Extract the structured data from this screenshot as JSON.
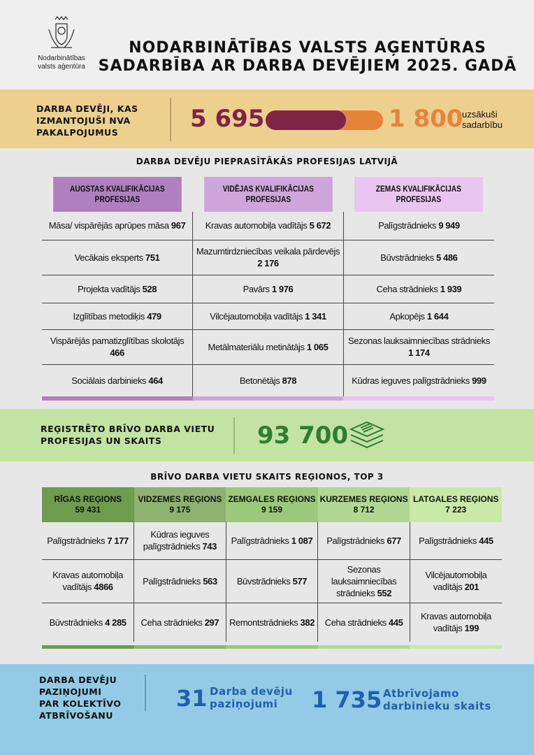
{
  "header": {
    "logo_text": [
      "Nodarbinātības",
      "valsts aģentūra"
    ],
    "title_line1": "NODARBINĀTĪBAS VALSTS AĢENTŪRAS",
    "title_line2": "SADARBĪBA AR DARBA DEVĒJIEM 2025. GADĀ"
  },
  "employers": {
    "label": [
      "DARBA DEVĒJI, KAS",
      "IZMANTOJUŠI NVA",
      "PAKALPOJUMUS"
    ],
    "total": "5 695",
    "started": "1 800",
    "started_label": [
      "uzsākuši",
      "sadarbību"
    ],
    "total_value": 5695,
    "started_value": 1800,
    "colors": {
      "total": "#7e2547",
      "started": "#e8833a"
    }
  },
  "professions": {
    "title": "DARBA DEVĒJU PIEPRASĪTĀKĀS PROFESIJAS LATVIJĀ",
    "columns": [
      {
        "header": "AUGSTAS KVALIFIKĀCIJAS PROFESIJAS",
        "color": "#b07fc0",
        "items": [
          {
            "name": "Māsa/ vispārējās aprūpes māsa",
            "count": "967"
          },
          {
            "name": "Vecākais eksperts",
            "count": "751"
          },
          {
            "name": "Projekta vadītājs",
            "count": "528"
          },
          {
            "name": "Izglītības metodiķis",
            "count": "479"
          },
          {
            "name": "Vispārējās pamatizglītības skolotājs",
            "count": "466"
          },
          {
            "name": "Sociālais darbinieks",
            "count": "464"
          }
        ]
      },
      {
        "header": "VIDĒJAS KVALIFIKĀCIJAS PROFESIJAS",
        "color": "#cfa6dc",
        "items": [
          {
            "name": "Kravas automobiļa vadītājs",
            "count": "5 672"
          },
          {
            "name": "Mazumtirdzniecības veikala pārdevējs",
            "count": "2 176"
          },
          {
            "name": "Pavārs",
            "count": "1 976"
          },
          {
            "name": "Vilcējautomobiļa vadītājs",
            "count": "1 341"
          },
          {
            "name": "Metālmateriālu metinātājs",
            "count": "1 065"
          },
          {
            "name": "Betonētājs",
            "count": "878"
          }
        ]
      },
      {
        "header": "ZEMAS KVALIFIKĀCIJAS PROFESIJAS",
        "color": "#e8c6ef",
        "items": [
          {
            "name": "Palīgstrādnieks",
            "count": "9 949"
          },
          {
            "name": "Būvstrādnieks",
            "count": "5 486"
          },
          {
            "name": "Ceha strādnieks",
            "count": "1 939"
          },
          {
            "name": "Apkopējs",
            "count": "1 644"
          },
          {
            "name": "Sezonas lauksaimniecības strādnieks",
            "count": "1 174"
          },
          {
            "name": "Kūdras ieguves palīgstrādnieks",
            "count": "999"
          }
        ]
      }
    ]
  },
  "vacancies": {
    "label": [
      "REĢISTRĒTO BRĪVO DARBA VIETU",
      "PROFESIJAS UN SKAITS"
    ],
    "total": "93 700",
    "icon": "documents-stack-icon",
    "color": "#2e7d32"
  },
  "regions": {
    "title": "BRĪVO DARBA VIETU SKAITS REĢIONOS, TOP 3",
    "columns": [
      {
        "name": "RĪGAS  REĢIONS",
        "total": "59 431",
        "color": "#6c9c4c",
        "items": [
          {
            "name": "Palīgstrādnieks",
            "count": "7 177"
          },
          {
            "name": "Kravas automobiļa vadītājs",
            "count": "4866"
          },
          {
            "name": "Būvstrādnieks",
            "count": "4 285"
          }
        ]
      },
      {
        "name": "VIDZEMES REĢIONS",
        "total": "9 175",
        "color": "#8db270",
        "items": [
          {
            "name": "Kūdras ieguves palīgstrādnieks",
            "count": "743"
          },
          {
            "name": "Palīgstrādnieks",
            "count": "563"
          },
          {
            "name": "Ceha strādnieks",
            "count": "297"
          }
        ]
      },
      {
        "name": "ZEMGALES REĢIONS",
        "total": "9 159",
        "color": "#9cc87a",
        "items": [
          {
            "name": "Palīgstrādnieks",
            "count": "1 087"
          },
          {
            "name": "Būvstrādnieks",
            "count": "577"
          },
          {
            "name": "Remontstrādnieks",
            "count": "382"
          }
        ]
      },
      {
        "name": "KURZEMES REĢIONS",
        "total": "8 712",
        "color": "#b1d892",
        "items": [
          {
            "name": "Palīgstrādnieks",
            "count": "677"
          },
          {
            "name": "Sezonas lauksaimniecības strādnieks",
            "count": "552"
          },
          {
            "name": "Ceha strādnieks",
            "count": "445"
          }
        ]
      },
      {
        "name": "LATGALES REĢIONS",
        "total": "7 223",
        "color": "#c9eaa6",
        "items": [
          {
            "name": "Palīgstrādnieks",
            "count": "445"
          },
          {
            "name": "Vilcējautomobiļa vadītājs",
            "count": "201"
          },
          {
            "name": "Kravas automobiļa vadītājs",
            "count": "199"
          }
        ]
      }
    ]
  },
  "layoffs": {
    "label": [
      "DARBA DEVĒJU",
      "PAZIŅOJUMI",
      "PAR KOLEKTĪVO",
      "ATBRĪVOŠANU"
    ],
    "notices": "31",
    "notices_label": [
      "Darba devēju",
      "paziņojumi"
    ],
    "workers": "1 735",
    "workers_label": [
      "Atbrīvojamo",
      "darbinieku skaits"
    ]
  }
}
